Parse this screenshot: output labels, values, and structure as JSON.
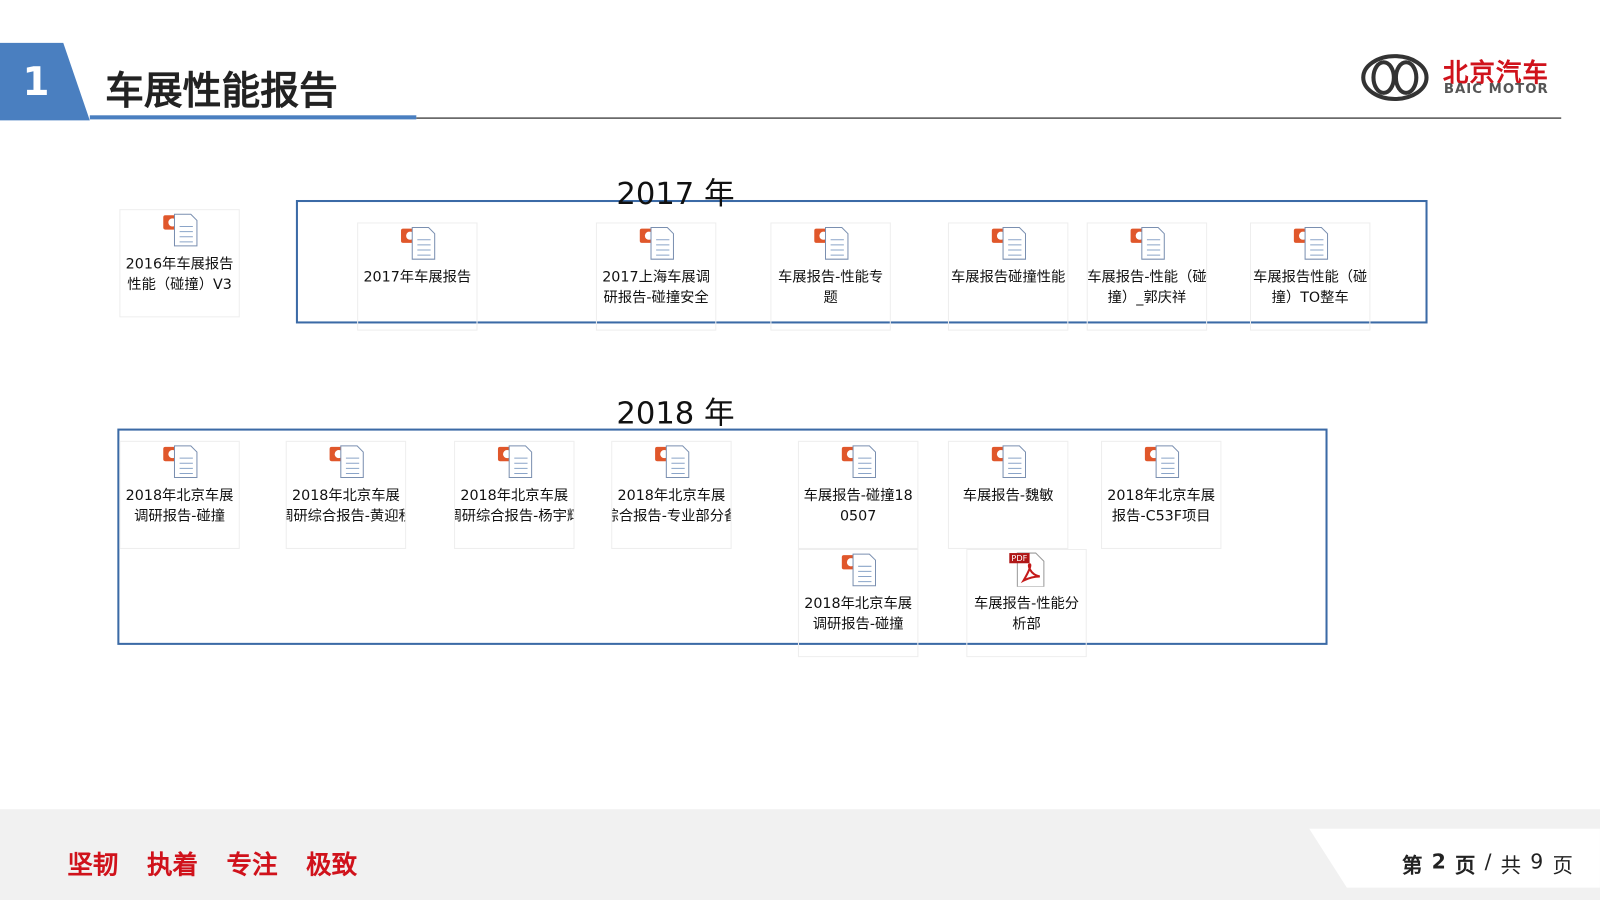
{
  "header": {
    "number": "1",
    "title": "车展性能报告"
  },
  "logo": {
    "cn": "北京汽车",
    "en": "BAIC MOTOR"
  },
  "loose_file": {
    "lines": [
      "2016年车展报告",
      "性能（碰撞）V3"
    ]
  },
  "sections": [
    {
      "title": "2017 年",
      "files": [
        {
          "lines": [
            "2017年车展报告"
          ]
        },
        {
          "lines": [
            "2017上海车展调",
            "研报告-碰撞安全"
          ]
        },
        {
          "lines": [
            "车展报告-性能专",
            "题"
          ]
        },
        {
          "lines": [
            "车展报告碰撞性能"
          ]
        },
        {
          "lines": [
            "车展报告-性能（碰",
            "撞）_郭庆祥"
          ]
        },
        {
          "lines": [
            "车展报告性能（碰",
            "撞）TO整车"
          ]
        }
      ]
    },
    {
      "title": "2018 年",
      "files": [
        {
          "lines": [
            "2018年北京车展",
            "调研报告-碰撞"
          ]
        },
        {
          "lines": [
            "2018年北京车展",
            "调研综合报告-黄迎秋"
          ]
        },
        {
          "lines": [
            "2018年北京车展",
            "调研综合报告-杨宇辉"
          ]
        },
        {
          "lines": [
            "2018年北京车展",
            "综合报告-专业部分备"
          ]
        },
        {
          "lines": [
            "车展报告-碰撞18",
            "0507"
          ]
        },
        {
          "lines": [
            "车展报告-魏敏"
          ]
        },
        {
          "lines": [
            "2018年北京车展",
            "报告-C53F项目"
          ]
        },
        {
          "lines": [
            "2018年北京车展",
            "调研报告-碰撞"
          ]
        },
        {
          "lines": [
            "车展报告-性能分",
            "析部"
          ]
        }
      ]
    }
  ],
  "footer": {
    "slogan": [
      "坚韧",
      "执着",
      "专注",
      "极致"
    ],
    "page": [
      "第",
      "2",
      "页",
      "/",
      "共",
      "9",
      "页"
    ]
  }
}
